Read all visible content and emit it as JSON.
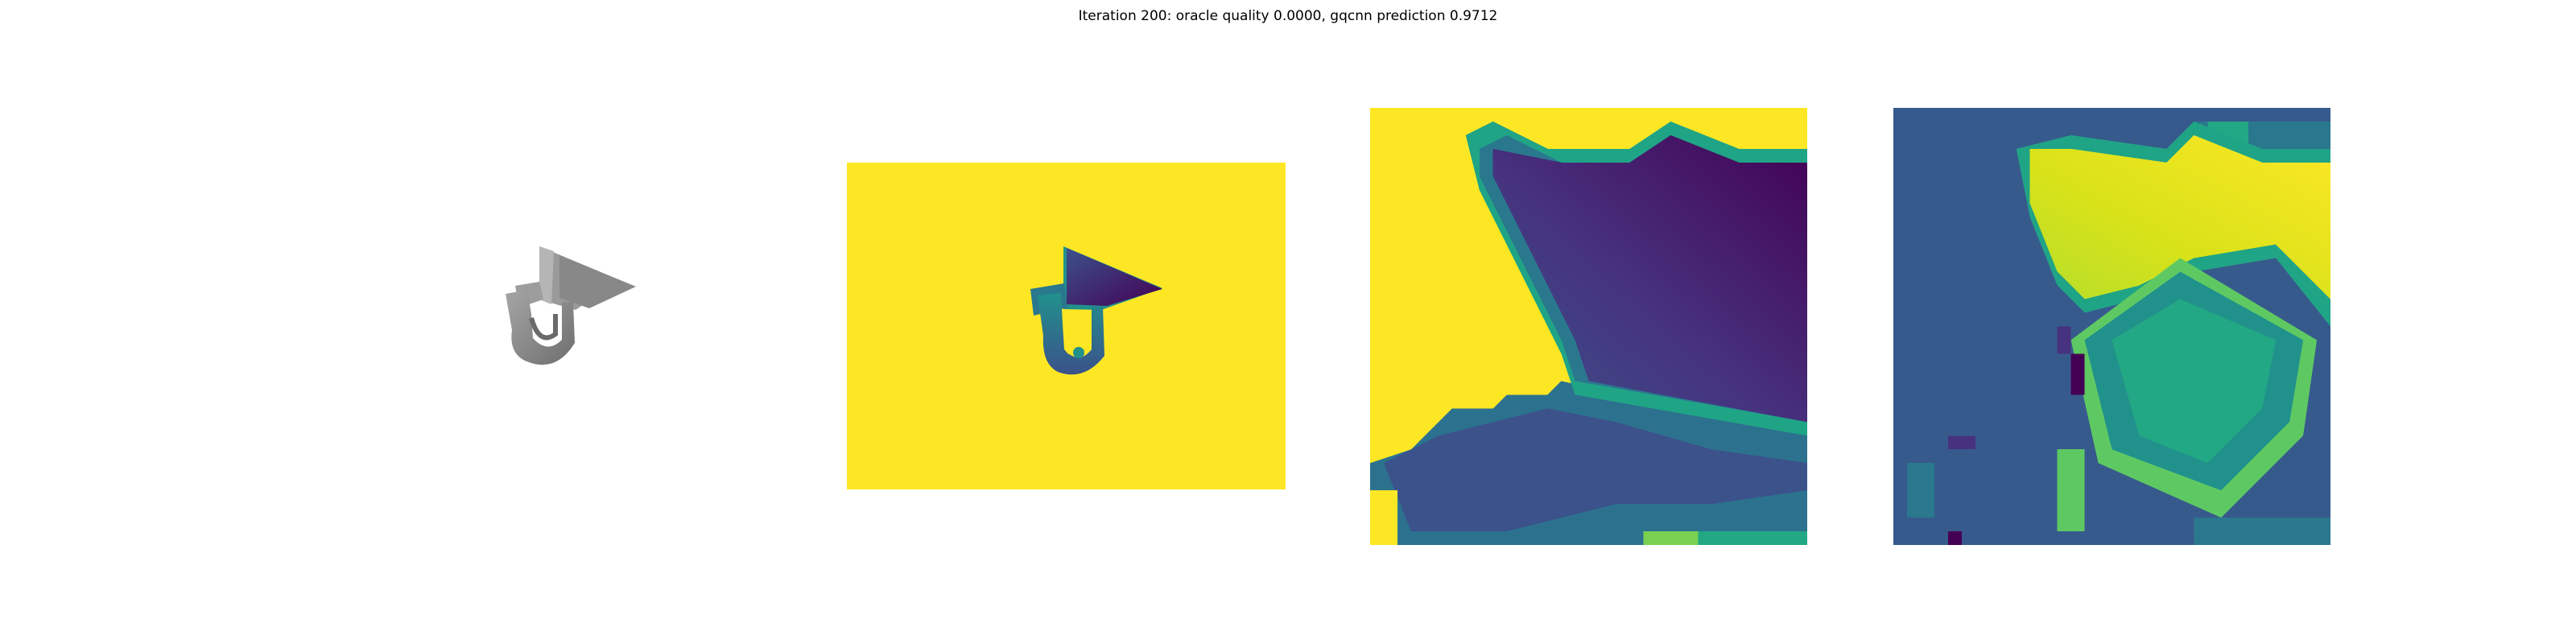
{
  "figure": {
    "title": "Iteration 200: oracle quality 0.0000, gqcnn prediction 0.9712"
  },
  "panels": [
    {
      "name": "rendered-object",
      "colormap": "gray"
    },
    {
      "name": "depth-image",
      "colormap": "viridis",
      "background": "#fde725"
    },
    {
      "name": "depth-crop",
      "colormap": "viridis"
    },
    {
      "name": "normalized-depth-crop",
      "colormap": "viridis"
    }
  ],
  "colors": {
    "viridis_yellow": "#fde725",
    "viridis_purple": "#440154",
    "viridis_blue": "#3b528b",
    "viridis_teal": "#21918c",
    "viridis_green": "#5ec962",
    "mesh_gray": "#8c8c8c"
  }
}
